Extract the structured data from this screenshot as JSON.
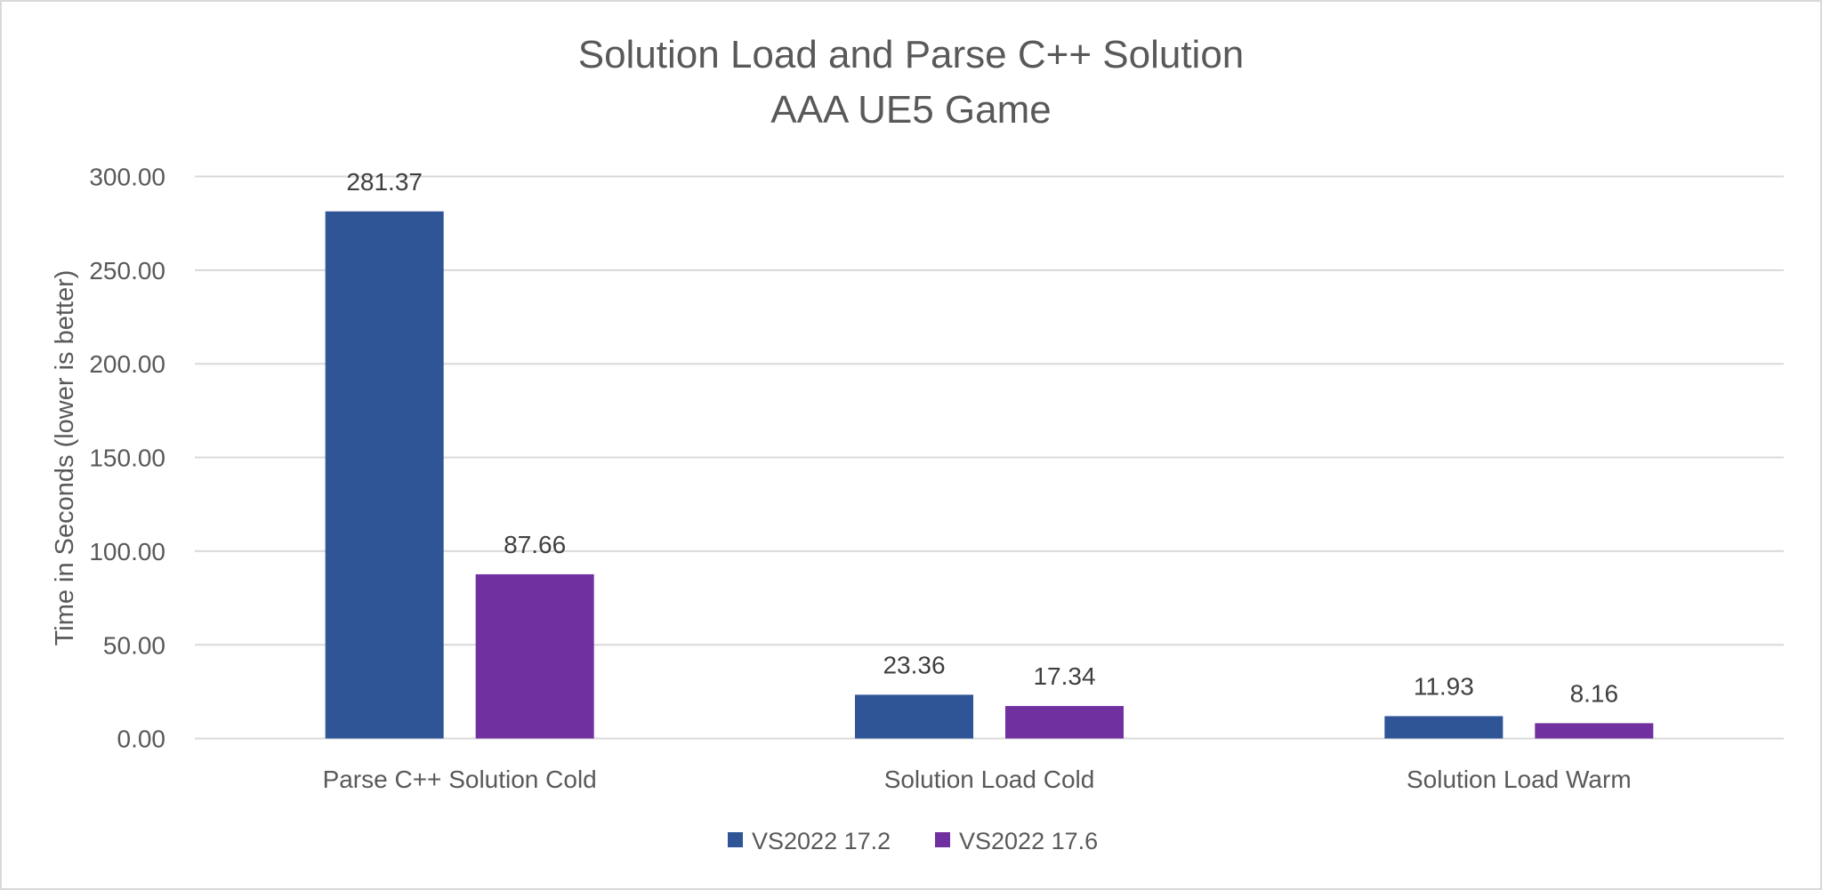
{
  "chart_data": {
    "type": "bar",
    "title": "Solution Load and Parse C++ Solution",
    "subtitle": "AAA UE5 Game",
    "xlabel": "",
    "ylabel": "Time in Seconds (lower is better)",
    "ylim": [
      0,
      300
    ],
    "yticks": [
      "0.00",
      "50.00",
      "100.00",
      "150.00",
      "200.00",
      "250.00",
      "300.00"
    ],
    "categories": [
      "Parse C++ Solution Cold",
      "Solution Load Cold",
      "Solution Load Warm"
    ],
    "series": [
      {
        "name": "VS2022 17.2",
        "values": [
          281.37,
          23.36,
          11.93
        ],
        "color": "#2f5597"
      },
      {
        "name": "VS2022 17.6",
        "values": [
          87.66,
          17.34,
          8.16
        ],
        "color": "#7030a0"
      }
    ],
    "grid": true,
    "legend": "bottom"
  }
}
